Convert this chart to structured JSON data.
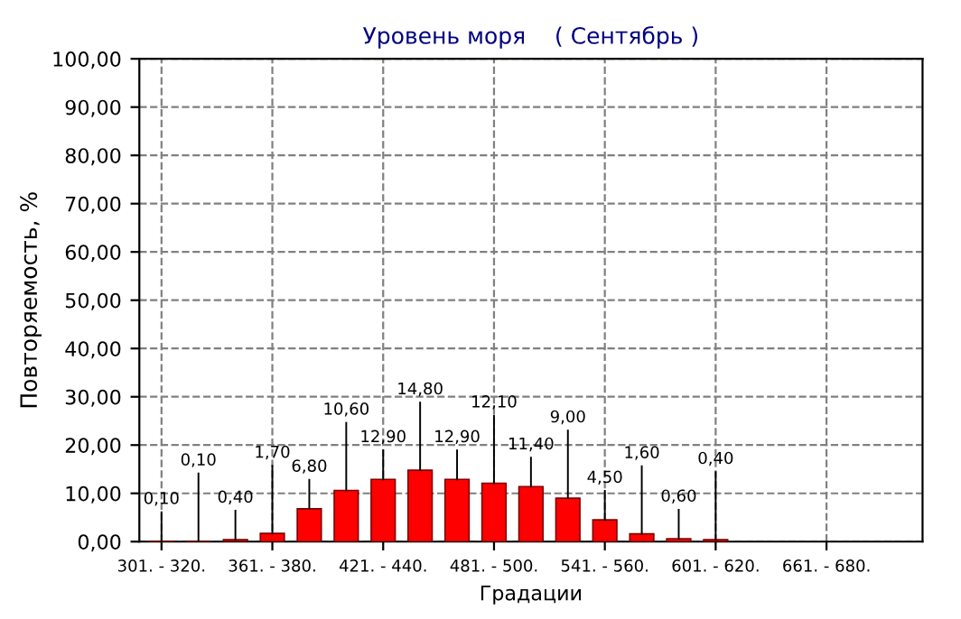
{
  "chart_data": {
    "type": "bar",
    "title": "Уровень моря    ( Сентябрь )",
    "xlabel": "Градации",
    "ylabel": "Повторяемость, %",
    "categories": [
      "301. - 320.",
      null,
      null,
      "361. - 380.",
      null,
      null,
      "421. - 440.",
      null,
      null,
      "481. - 500.",
      null,
      null,
      "541. - 560.",
      null,
      null,
      "601. - 620.",
      null,
      null,
      "661. - 680.",
      null,
      null
    ],
    "values": [
      0.1,
      0.1,
      0.4,
      1.7,
      6.8,
      10.6,
      12.9,
      14.8,
      12.9,
      12.1,
      11.4,
      9.0,
      4.5,
      1.6,
      0.6,
      0.4,
      null,
      null,
      null,
      null,
      null
    ],
    "value_labels": [
      "0,10",
      "0,10",
      "0,40",
      "1,70",
      "6,80",
      "10,60",
      "12,90",
      "14,80",
      "12,90",
      "12,10",
      "11,40",
      "9,00",
      "4,50",
      "1,60",
      "0,60",
      "0,40",
      null,
      null,
      null,
      null,
      null
    ],
    "color": "#ff0000",
    "ylim": [
      0,
      100
    ],
    "yticks": [
      {
        "value": 0,
        "label": "0,00"
      },
      {
        "value": 10,
        "label": "10,00"
      },
      {
        "value": 20,
        "label": "20,00"
      },
      {
        "value": 30,
        "label": "30,00"
      },
      {
        "value": 40,
        "label": "40,00"
      },
      {
        "value": 50,
        "label": "50,00"
      },
      {
        "value": 60,
        "label": "60,00"
      },
      {
        "value": 70,
        "label": "70,00"
      },
      {
        "value": 80,
        "label": "80,00"
      },
      {
        "value": 90,
        "label": "90,00"
      },
      {
        "value": 100,
        "label": "100,00"
      }
    ],
    "grid": true
  }
}
